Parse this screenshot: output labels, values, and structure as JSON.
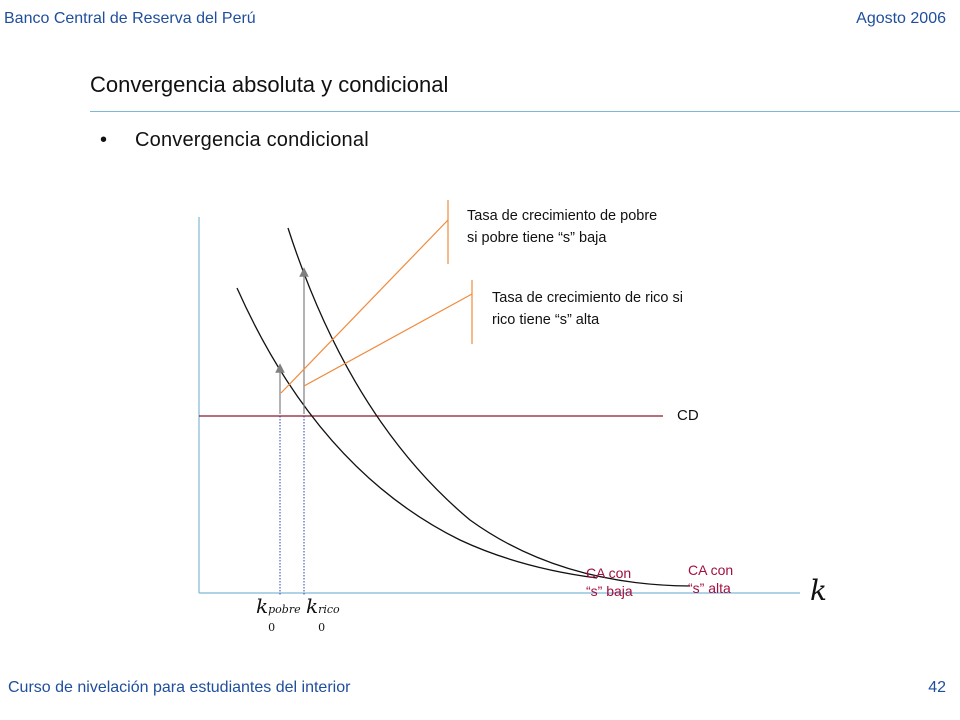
{
  "header": {
    "left": "Banco Central de Reserva del Perú",
    "right": "Agosto 2006"
  },
  "slide": {
    "title": "Convergencia absoluta y condicional",
    "bullet_symbol": "•",
    "bullet": "Convergencia condicional"
  },
  "diagram": {
    "annotation_pobre": [
      "Tasa de crecimiento de pobre",
      "si pobre tiene “s” baja"
    ],
    "annotation_rico": [
      "Tasa de crecimiento de rico si",
      "rico tiene “s” alta"
    ],
    "cd_label": "CD",
    "ca_baja": [
      "CA con",
      "“s” baja"
    ],
    "ca_alta": [
      "CA con",
      "“s” alta"
    ],
    "x_axis_label": "k",
    "k0_base": "k",
    "k0_sub": "0",
    "k0_pobre_sup": "pobre",
    "k0_rico_sup": "rico",
    "colors": {
      "axis": "#7fb8d6",
      "cd_line": "#8b1a2b",
      "curve": "#111111",
      "annotation_line": "#f08a3c",
      "arrow": "#808080",
      "guide": "#2a3fb0",
      "ca_text": "#a01040"
    }
  },
  "footer": {
    "left": "Curso de nivelación para estudiantes del interior",
    "page": "42"
  }
}
